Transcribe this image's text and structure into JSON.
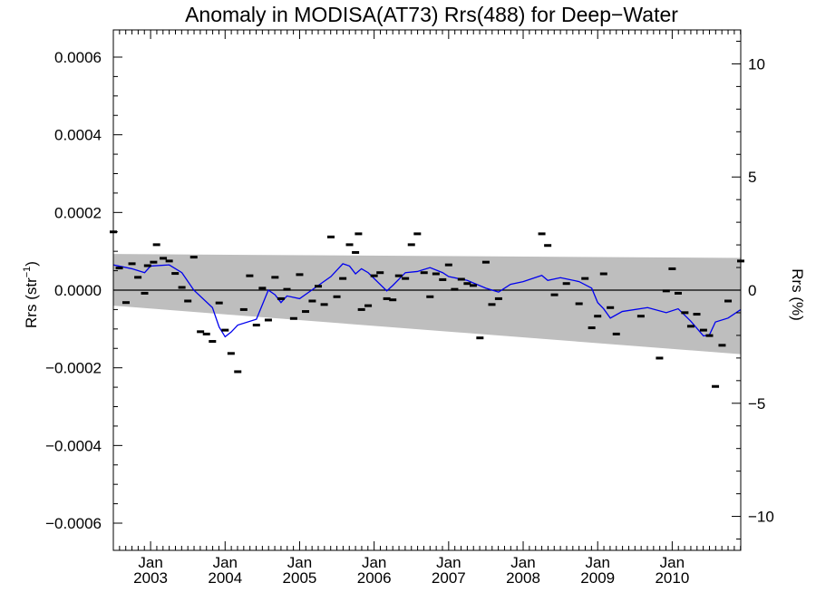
{
  "chart_data": {
    "type": "scatter",
    "title": "Anomaly in MODISA(AT73) Rrs(488) for Deep−Water",
    "ylabel_left_base": "Rrs (str",
    "ylabel_left_sup": "−1",
    "ylabel_left_close": ")",
    "ylabel_right": "Rrs (%)",
    "x_range": [
      2002.5,
      2010.92
    ],
    "ylim_left": [
      -0.00067,
      0.00067
    ],
    "ylim_right": [
      -11.5,
      11.5
    ],
    "grid": false,
    "x_ticks": [
      {
        "x": 2003.0,
        "month": "Jan",
        "year": "2003"
      },
      {
        "x": 2004.0,
        "month": "Jan",
        "year": "2004"
      },
      {
        "x": 2005.0,
        "month": "Jan",
        "year": "2005"
      },
      {
        "x": 2006.0,
        "month": "Jan",
        "year": "2006"
      },
      {
        "x": 2007.0,
        "month": "Jan",
        "year": "2007"
      },
      {
        "x": 2008.0,
        "month": "Jan",
        "year": "2008"
      },
      {
        "x": 2009.0,
        "month": "Jan",
        "year": "2009"
      },
      {
        "x": 2010.0,
        "month": "Jan",
        "year": "2010"
      }
    ],
    "y_ticks_left": [
      {
        "v": 0.0006,
        "label": "0.0006"
      },
      {
        "v": 0.0004,
        "label": "0.0004"
      },
      {
        "v": 0.0002,
        "label": "0.0002"
      },
      {
        "v": 0.0,
        "label": "0.0000"
      },
      {
        "v": -0.0002,
        "label": "−0.0002"
      },
      {
        "v": -0.0004,
        "label": "−0.0004"
      },
      {
        "v": -0.0006,
        "label": "−0.0006"
      }
    ],
    "y_ticks_right": [
      {
        "v": 10,
        "label": "10"
      },
      {
        "v": 5,
        "label": "5"
      },
      {
        "v": 0,
        "label": "0"
      },
      {
        "v": -5,
        "label": "−5"
      },
      {
        "v": -10,
        "label": "−10"
      }
    ],
    "band": {
      "upper": [
        [
          2002.5,
          9.3e-05
        ],
        [
          2010.92,
          8.3e-05
        ]
      ],
      "lower": [
        [
          2002.5,
          -4e-05
        ],
        [
          2010.92,
          -0.000165
        ]
      ],
      "color": "#bebebe"
    },
    "zero_line": 0,
    "points": [
      [
        2002.5,
        0.00015
      ],
      [
        2002.58,
        5.7e-05
      ],
      [
        2002.67,
        -3.2e-05
      ],
      [
        2002.75,
        6.8e-05
      ],
      [
        2002.83,
        3.3e-05
      ],
      [
        2002.92,
        -8e-06
      ],
      [
        2002.96,
        6.3e-05
      ],
      [
        2003.04,
        7.2e-05
      ],
      [
        2003.08,
        0.000117
      ],
      [
        2003.17,
        8.2e-05
      ],
      [
        2003.25,
        7.5e-05
      ],
      [
        2003.33,
        4.3e-05
      ],
      [
        2003.42,
        7e-06
      ],
      [
        2003.5,
        -2.8e-05
      ],
      [
        2003.58,
        8.5e-05
      ],
      [
        2003.67,
        -0.000107
      ],
      [
        2003.75,
        -0.000113
      ],
      [
        2003.83,
        -0.000132
      ],
      [
        2003.92,
        -3.3e-05
      ],
      [
        2004.0,
        -0.000103
      ],
      [
        2004.08,
        -0.000163
      ],
      [
        2004.17,
        -0.00021
      ],
      [
        2004.25,
        -5e-05
      ],
      [
        2004.33,
        3.7e-05
      ],
      [
        2004.42,
        -9e-05
      ],
      [
        2004.5,
        5e-06
      ],
      [
        2004.58,
        -7.7e-05
      ],
      [
        2004.67,
        3.3e-05
      ],
      [
        2004.75,
        -2.2e-05
      ],
      [
        2004.83,
        2e-06
      ],
      [
        2004.92,
        -7.3e-05
      ],
      [
        2005.0,
        4e-05
      ],
      [
        2005.08,
        -5.5e-05
      ],
      [
        2005.17,
        -2.8e-05
      ],
      [
        2005.25,
        1e-05
      ],
      [
        2005.33,
        -3.7e-05
      ],
      [
        2005.42,
        0.000137
      ],
      [
        2005.5,
        -1.7e-05
      ],
      [
        2005.58,
        3e-05
      ],
      [
        2005.67,
        0.000117
      ],
      [
        2005.75,
        9.7e-05
      ],
      [
        2005.79,
        0.000145
      ],
      [
        2005.83,
        -5e-05
      ],
      [
        2005.92,
        -4e-05
      ],
      [
        2006.0,
        3.7e-05
      ],
      [
        2006.08,
        4.5e-05
      ],
      [
        2006.17,
        -2.2e-05
      ],
      [
        2006.25,
        -2.5e-05
      ],
      [
        2006.33,
        3.7e-05
      ],
      [
        2006.42,
        3e-05
      ],
      [
        2006.5,
        0.000117
      ],
      [
        2006.58,
        0.000145
      ],
      [
        2006.67,
        4.5e-05
      ],
      [
        2006.75,
        -1.7e-05
      ],
      [
        2006.83,
        4.2e-05
      ],
      [
        2006.92,
        2.7e-05
      ],
      [
        2007.0,
        6.5e-05
      ],
      [
        2007.08,
        2e-06
      ],
      [
        2007.17,
        2.8e-05
      ],
      [
        2007.25,
        1.7e-05
      ],
      [
        2007.33,
        1.2e-05
      ],
      [
        2007.42,
        -0.000123
      ],
      [
        2007.5,
        7.2e-05
      ],
      [
        2007.58,
        -3.7e-05
      ],
      [
        2007.67,
        -2.2e-05
      ],
      [
        2008.25,
        0.000145
      ],
      [
        2008.33,
        0.000115
      ],
      [
        2008.42,
        -1.2e-05
      ],
      [
        2008.58,
        1.7e-05
      ],
      [
        2008.75,
        -3.5e-05
      ],
      [
        2008.83,
        3e-05
      ],
      [
        2008.92,
        -9.7e-05
      ],
      [
        2009.0,
        -6.7e-05
      ],
      [
        2009.08,
        4.2e-05
      ],
      [
        2009.17,
        -4.5e-05
      ],
      [
        2009.25,
        -0.000113
      ],
      [
        2009.58,
        -6.7e-05
      ],
      [
        2009.83,
        -0.000175
      ],
      [
        2009.92,
        -2e-06
      ],
      [
        2010.0,
        5.5e-05
      ],
      [
        2010.08,
        -8e-06
      ],
      [
        2010.17,
        -5.8e-05
      ],
      [
        2010.25,
        -9.3e-05
      ],
      [
        2010.33,
        -6.2e-05
      ],
      [
        2010.42,
        -0.000103
      ],
      [
        2010.5,
        -0.000117
      ],
      [
        2010.58,
        -0.000248
      ],
      [
        2010.67,
        -0.000142
      ],
      [
        2010.75,
        -2.8e-05
      ],
      [
        2010.92,
        7.5e-05
      ]
    ],
    "smooth_line": {
      "color": "#0000ee",
      "points": [
        [
          2002.5,
          6.5e-05
        ],
        [
          2002.75,
          5.5e-05
        ],
        [
          2002.92,
          4.5e-05
        ],
        [
          2003.0,
          6.2e-05
        ],
        [
          2003.25,
          6.5e-05
        ],
        [
          2003.42,
          4.5e-05
        ],
        [
          2003.58,
          0.0
        ],
        [
          2003.83,
          -4.5e-05
        ],
        [
          2003.92,
          -9.5e-05
        ],
        [
          2004.0,
          -0.00012
        ],
        [
          2004.08,
          -0.000108
        ],
        [
          2004.17,
          -9e-05
        ],
        [
          2004.42,
          -7.5e-05
        ],
        [
          2004.58,
          0.0
        ],
        [
          2004.67,
          -1.2e-05
        ],
        [
          2004.75,
          -3.2e-05
        ],
        [
          2004.83,
          -1.5e-05
        ],
        [
          2005.0,
          -2.2e-05
        ],
        [
          2005.25,
          1.2e-05
        ],
        [
          2005.42,
          3.5e-05
        ],
        [
          2005.58,
          6.8e-05
        ],
        [
          2005.67,
          6.2e-05
        ],
        [
          2005.75,
          4.2e-05
        ],
        [
          2005.83,
          5.5e-05
        ],
        [
          2005.92,
          4.5e-05
        ],
        [
          2006.17,
          -2e-06
        ],
        [
          2006.25,
          1.2e-05
        ],
        [
          2006.42,
          4.5e-05
        ],
        [
          2006.58,
          4.8e-05
        ],
        [
          2006.75,
          5.8e-05
        ],
        [
          2006.92,
          4.5e-05
        ],
        [
          2007.0,
          3.5e-05
        ],
        [
          2007.25,
          2.5e-05
        ],
        [
          2007.5,
          5e-06
        ],
        [
          2007.67,
          -5e-06
        ],
        [
          2007.83,
          1.5e-05
        ],
        [
          2008.0,
          2.2e-05
        ],
        [
          2008.25,
          3.8e-05
        ],
        [
          2008.33,
          2.5e-05
        ],
        [
          2008.5,
          3.2e-05
        ],
        [
          2008.75,
          2.2e-05
        ],
        [
          2008.92,
          5e-06
        ],
        [
          2009.0,
          -3.2e-05
        ],
        [
          2009.08,
          -4.8e-05
        ],
        [
          2009.17,
          -7.2e-05
        ],
        [
          2009.33,
          -5.5e-05
        ],
        [
          2009.67,
          -4.5e-05
        ],
        [
          2009.92,
          -5.8e-05
        ],
        [
          2010.08,
          -4.8e-05
        ],
        [
          2010.25,
          -8e-05
        ],
        [
          2010.42,
          -0.000118
        ],
        [
          2010.5,
          -0.000115
        ],
        [
          2010.58,
          -8.2e-05
        ],
        [
          2010.75,
          -7.2e-05
        ],
        [
          2010.92,
          -5e-05
        ]
      ]
    }
  }
}
